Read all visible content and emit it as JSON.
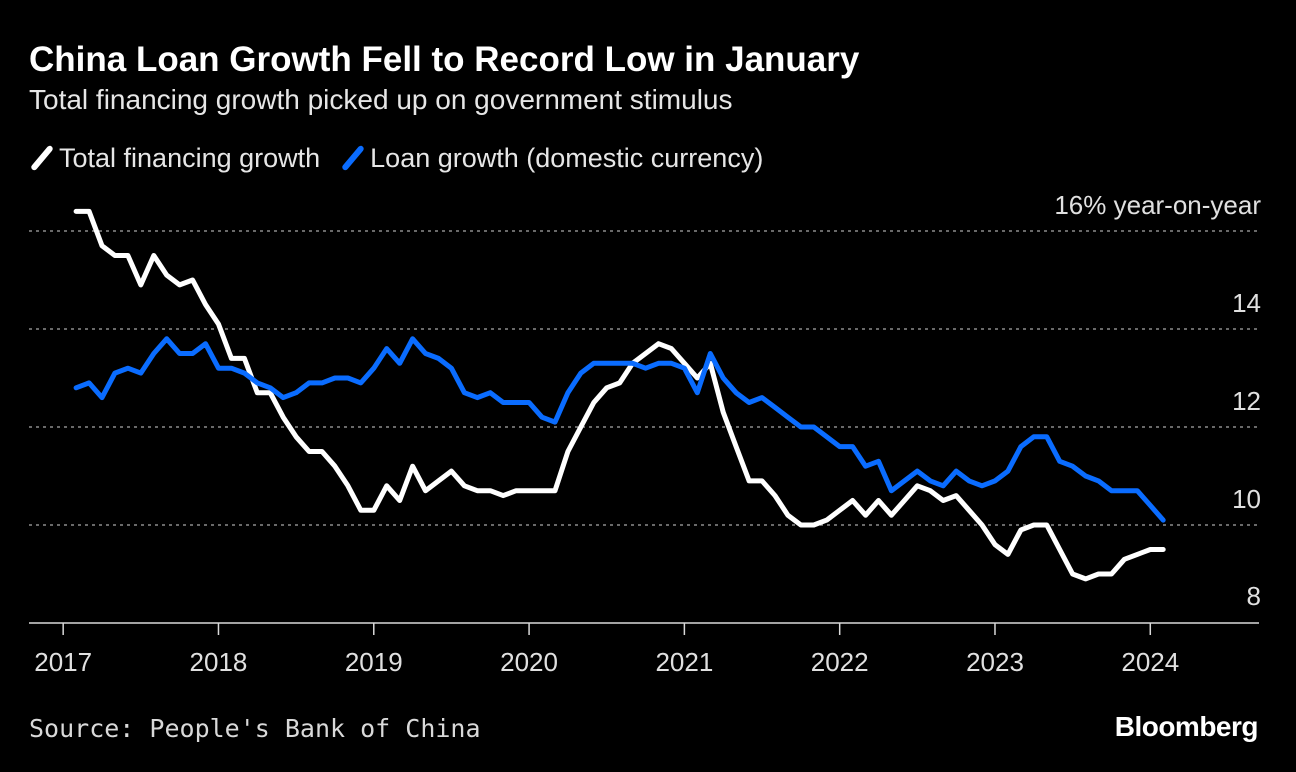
{
  "title": "China Loan Growth Fell to Record Low in January",
  "subtitle": "Total financing growth picked up on government stimulus",
  "legend": {
    "total_financing": "Total financing growth",
    "loan_growth": "Loan growth (domestic currency)"
  },
  "source": "Source: People's Bank of China",
  "brand": "Bloomberg",
  "colors": {
    "total_financing": "#ffffff",
    "loan_growth": "#0a6cff",
    "grid": "#8c8c8c",
    "background": "#000000"
  },
  "chart_data": {
    "type": "line",
    "ylabel": "16% year-on-year",
    "ylim": [
      8,
      16
    ],
    "yticks": [
      {
        "value": 16,
        "label": "16% year-on-year"
      },
      {
        "value": 14,
        "label": "14"
      },
      {
        "value": 12,
        "label": "12"
      },
      {
        "value": 10,
        "label": "10"
      },
      {
        "value": 8,
        "label": "8"
      }
    ],
    "x_start": "2017-01",
    "xlim": [
      2016.78,
      2024.7
    ],
    "xticks": [
      {
        "value": 2017,
        "label": "2017"
      },
      {
        "value": 2018,
        "label": "2018"
      },
      {
        "value": 2019,
        "label": "2019"
      },
      {
        "value": 2020,
        "label": "2020"
      },
      {
        "value": 2021,
        "label": "2021"
      },
      {
        "value": 2022,
        "label": "2022"
      },
      {
        "value": 2023,
        "label": "2023"
      },
      {
        "value": 2024,
        "label": "2024"
      }
    ],
    "grid": true,
    "series": [
      {
        "name": "Total financing growth",
        "color": "#ffffff",
        "values": [
          16.4,
          16.4,
          15.7,
          15.5,
          15.5,
          14.9,
          15.5,
          15.1,
          14.9,
          15.0,
          14.5,
          14.1,
          13.4,
          13.4,
          12.7,
          12.7,
          12.2,
          11.8,
          11.5,
          11.5,
          11.2,
          10.8,
          10.3,
          10.3,
          10.8,
          10.5,
          11.2,
          10.7,
          10.9,
          11.1,
          10.8,
          10.7,
          10.7,
          10.6,
          10.7,
          10.7,
          10.7,
          10.7,
          11.5,
          12.0,
          12.5,
          12.8,
          12.9,
          13.3,
          13.5,
          13.7,
          13.6,
          13.3,
          13.0,
          13.3,
          12.3,
          11.6,
          10.9,
          10.9,
          10.6,
          10.2,
          10.0,
          10.0,
          10.1,
          10.3,
          10.5,
          10.2,
          10.5,
          10.2,
          10.5,
          10.8,
          10.7,
          10.5,
          10.6,
          10.3,
          10.0,
          9.6,
          9.4,
          9.9,
          10.0,
          10.0,
          9.5,
          9.0,
          8.9,
          9.0,
          9.0,
          9.3,
          9.4,
          9.5,
          9.5
        ]
      },
      {
        "name": "Loan growth (domestic currency)",
        "color": "#0a6cff",
        "values": [
          12.8,
          12.9,
          12.6,
          13.1,
          13.2,
          13.1,
          13.5,
          13.8,
          13.5,
          13.5,
          13.7,
          13.2,
          13.2,
          13.1,
          12.9,
          12.8,
          12.6,
          12.7,
          12.9,
          12.9,
          13.0,
          13.0,
          12.9,
          13.2,
          13.6,
          13.3,
          13.8,
          13.5,
          13.4,
          13.2,
          12.7,
          12.6,
          12.7,
          12.5,
          12.5,
          12.5,
          12.2,
          12.1,
          12.7,
          13.1,
          13.3,
          13.3,
          13.3,
          13.3,
          13.2,
          13.3,
          13.3,
          13.2,
          12.7,
          13.5,
          13.0,
          12.7,
          12.5,
          12.6,
          12.4,
          12.2,
          12.0,
          12.0,
          11.8,
          11.6,
          11.6,
          11.2,
          11.3,
          10.7,
          10.9,
          11.1,
          10.9,
          10.8,
          11.1,
          10.9,
          10.8,
          10.9,
          11.1,
          11.6,
          11.8,
          11.8,
          11.3,
          11.2,
          11.0,
          10.9,
          10.7,
          10.7,
          10.7,
          10.4,
          10.1
        ]
      }
    ]
  }
}
